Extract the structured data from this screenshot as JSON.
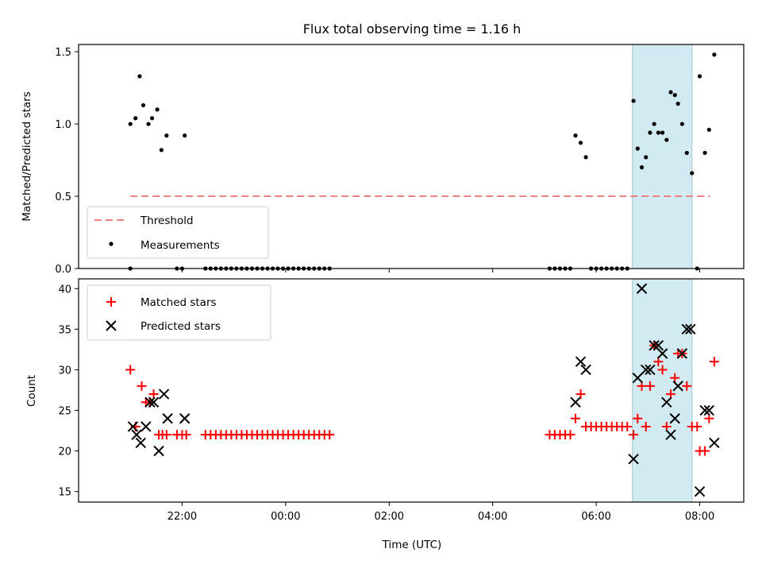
{
  "chart_data": {
    "type": "scatter",
    "title": "Flux total observing time = 1.16 h",
    "xlabel": "Time (UTC)",
    "x_ticks": [
      "22:00",
      "00:00",
      "02:00",
      "04:00",
      "06:00",
      "08:00"
    ],
    "x_range_hours": [
      20.0,
      32.85
    ],
    "highlight_span": {
      "from": 30.7,
      "to": 31.85,
      "color": "#add8e6"
    },
    "top_panel": {
      "ylabel": "Matched/Predicted stars",
      "ylim": [
        0.0,
        1.55
      ],
      "y_ticks": [
        "0.0",
        "0.5",
        "1.0",
        "1.5"
      ],
      "legend": [
        "Threshold",
        "Measurements"
      ],
      "threshold": {
        "name": "Threshold",
        "value": 0.5,
        "x_from": 21.0,
        "x_to": 32.2,
        "color": "#f08080"
      },
      "measurements": {
        "name": "Measurements",
        "color": "#000000",
        "points": [
          [
            21.0,
            1.0
          ],
          [
            21.1,
            1.04
          ],
          [
            21.18,
            1.33
          ],
          [
            21.25,
            1.13
          ],
          [
            21.35,
            1.0
          ],
          [
            21.42,
            1.04
          ],
          [
            21.52,
            1.1
          ],
          [
            21.6,
            0.82
          ],
          [
            21.7,
            0.92
          ],
          [
            22.05,
            0.92
          ],
          [
            21.0,
            0.0
          ],
          [
            21.9,
            0.0
          ],
          [
            22.0,
            0.0
          ],
          [
            22.45,
            0.0
          ],
          [
            22.55,
            0.0
          ],
          [
            22.65,
            0.0
          ],
          [
            22.75,
            0.0
          ],
          [
            22.85,
            0.0
          ],
          [
            22.95,
            0.0
          ],
          [
            23.05,
            0.0
          ],
          [
            23.15,
            0.0
          ],
          [
            23.25,
            0.0
          ],
          [
            23.35,
            0.0
          ],
          [
            23.45,
            0.0
          ],
          [
            23.55,
            0.0
          ],
          [
            23.65,
            0.0
          ],
          [
            23.75,
            0.0
          ],
          [
            23.85,
            0.0
          ],
          [
            23.95,
            0.0
          ],
          [
            24.05,
            0.0
          ],
          [
            24.15,
            0.0
          ],
          [
            24.25,
            0.0
          ],
          [
            24.35,
            0.0
          ],
          [
            24.45,
            0.0
          ],
          [
            24.55,
            0.0
          ],
          [
            24.65,
            0.0
          ],
          [
            24.75,
            0.0
          ],
          [
            24.85,
            0.0
          ],
          [
            29.1,
            0.0
          ],
          [
            29.2,
            0.0
          ],
          [
            29.3,
            0.0
          ],
          [
            29.4,
            0.0
          ],
          [
            29.5,
            0.0
          ],
          [
            29.9,
            0.0
          ],
          [
            30.0,
            0.0
          ],
          [
            30.1,
            0.0
          ],
          [
            30.2,
            0.0
          ],
          [
            30.3,
            0.0
          ],
          [
            30.4,
            0.0
          ],
          [
            30.5,
            0.0
          ],
          [
            30.6,
            0.0
          ],
          [
            31.95,
            0.0
          ],
          [
            29.6,
            0.92
          ],
          [
            29.7,
            0.87
          ],
          [
            29.8,
            0.77
          ],
          [
            30.72,
            1.16
          ],
          [
            30.8,
            0.83
          ],
          [
            30.88,
            0.7
          ],
          [
            30.96,
            0.77
          ],
          [
            31.04,
            0.94
          ],
          [
            31.12,
            1.0
          ],
          [
            31.2,
            0.94
          ],
          [
            31.28,
            0.94
          ],
          [
            31.36,
            0.89
          ],
          [
            31.44,
            1.22
          ],
          [
            31.52,
            1.2
          ],
          [
            31.58,
            1.14
          ],
          [
            31.66,
            1.0
          ],
          [
            31.75,
            0.8
          ],
          [
            31.85,
            0.66
          ],
          [
            32.0,
            1.33
          ],
          [
            32.1,
            0.8
          ],
          [
            32.18,
            0.96
          ],
          [
            32.28,
            1.48
          ]
        ]
      }
    },
    "bottom_panel": {
      "ylabel": "Count",
      "ylim": [
        13.7,
        41.2
      ],
      "y_ticks": [
        "15",
        "20",
        "25",
        "30",
        "35",
        "40"
      ],
      "legend": [
        "Matched stars",
        "Predicted stars"
      ],
      "series": [
        {
          "name": "Matched stars",
          "marker": "plus",
          "color": "#ff0000",
          "points": [
            [
              21.0,
              30
            ],
            [
              21.1,
              23
            ],
            [
              21.22,
              28
            ],
            [
              21.3,
              26
            ],
            [
              21.38,
              26
            ],
            [
              21.45,
              27
            ],
            [
              21.55,
              22
            ],
            [
              21.62,
              22
            ],
            [
              21.7,
              22
            ],
            [
              21.9,
              22
            ],
            [
              22.0,
              22
            ],
            [
              22.08,
              22
            ],
            [
              22.45,
              22
            ],
            [
              22.55,
              22
            ],
            [
              22.65,
              22
            ],
            [
              22.75,
              22
            ],
            [
              22.85,
              22
            ],
            [
              22.95,
              22
            ],
            [
              23.05,
              22
            ],
            [
              23.15,
              22
            ],
            [
              23.25,
              22
            ],
            [
              23.35,
              22
            ],
            [
              23.45,
              22
            ],
            [
              23.55,
              22
            ],
            [
              23.65,
              22
            ],
            [
              23.75,
              22
            ],
            [
              23.85,
              22
            ],
            [
              23.95,
              22
            ],
            [
              24.05,
              22
            ],
            [
              24.15,
              22
            ],
            [
              24.25,
              22
            ],
            [
              24.35,
              22
            ],
            [
              24.45,
              22
            ],
            [
              24.55,
              22
            ],
            [
              24.65,
              22
            ],
            [
              24.75,
              22
            ],
            [
              24.85,
              22
            ],
            [
              29.1,
              22
            ],
            [
              29.2,
              22
            ],
            [
              29.3,
              22
            ],
            [
              29.4,
              22
            ],
            [
              29.5,
              22
            ],
            [
              29.6,
              24
            ],
            [
              29.7,
              27
            ],
            [
              29.8,
              23
            ],
            [
              29.9,
              23
            ],
            [
              30.0,
              23
            ],
            [
              30.1,
              23
            ],
            [
              30.2,
              23
            ],
            [
              30.3,
              23
            ],
            [
              30.4,
              23
            ],
            [
              30.5,
              23
            ],
            [
              30.6,
              23
            ],
            [
              30.72,
              22
            ],
            [
              30.8,
              24
            ],
            [
              30.88,
              28
            ],
            [
              30.96,
              23
            ],
            [
              31.04,
              28
            ],
            [
              31.12,
              33
            ],
            [
              31.2,
              31
            ],
            [
              31.28,
              30
            ],
            [
              31.36,
              23
            ],
            [
              31.44,
              27
            ],
            [
              31.52,
              29
            ],
            [
              31.58,
              32
            ],
            [
              31.66,
              32
            ],
            [
              31.75,
              28
            ],
            [
              31.85,
              23
            ],
            [
              31.95,
              23
            ],
            [
              32.0,
              20
            ],
            [
              32.1,
              20
            ],
            [
              32.18,
              24
            ],
            [
              32.28,
              31
            ]
          ]
        },
        {
          "name": "Predicted stars",
          "marker": "x",
          "color": "#000000",
          "points": [
            [
              21.05,
              23
            ],
            [
              21.12,
              22
            ],
            [
              21.2,
              21
            ],
            [
              21.3,
              23
            ],
            [
              21.38,
              26
            ],
            [
              21.45,
              26
            ],
            [
              21.55,
              20
            ],
            [
              21.65,
              27
            ],
            [
              21.72,
              24
            ],
            [
              22.05,
              24
            ],
            [
              29.6,
              26
            ],
            [
              29.7,
              31
            ],
            [
              29.8,
              30
            ],
            [
              30.72,
              19
            ],
            [
              30.8,
              29
            ],
            [
              30.88,
              40
            ],
            [
              30.96,
              30
            ],
            [
              31.04,
              30
            ],
            [
              31.12,
              33
            ],
            [
              31.2,
              33
            ],
            [
              31.28,
              32
            ],
            [
              31.36,
              26
            ],
            [
              31.44,
              22
            ],
            [
              31.52,
              24
            ],
            [
              31.58,
              28
            ],
            [
              31.66,
              32
            ],
            [
              31.75,
              35
            ],
            [
              31.82,
              35
            ],
            [
              32.0,
              15
            ],
            [
              32.1,
              25
            ],
            [
              32.18,
              25
            ],
            [
              32.28,
              21
            ]
          ]
        }
      ]
    }
  }
}
